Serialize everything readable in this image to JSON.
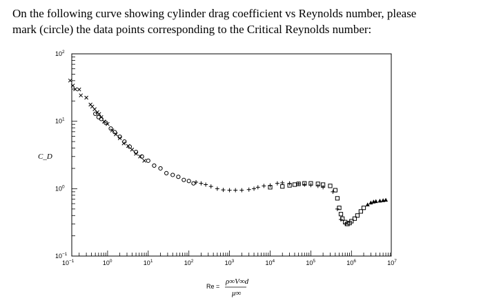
{
  "question": {
    "line1": "On the following curve showing cylinder drag coefficient vs Reynolds number, please",
    "line2": "mark (circle) the data points corresponding to the Critical Reynolds number:"
  },
  "chart_data": {
    "type": "scatter",
    "title": "",
    "xscale": "log",
    "yscale": "log",
    "xlim": [
      0.1,
      10000000
    ],
    "ylim": [
      0.1,
      100
    ],
    "ylabel": "C_D",
    "xlabel_prefix": "Re =",
    "xlabel_numerator": "ρ∞V∞d",
    "xlabel_denominator": "μ∞",
    "x_ticks": [
      {
        "base": "10",
        "exp": "−1",
        "value": 0.1
      },
      {
        "base": "10",
        "exp": "0",
        "value": 1
      },
      {
        "base": "10",
        "exp": "1",
        "value": 10
      },
      {
        "base": "10",
        "exp": "2",
        "value": 100
      },
      {
        "base": "10",
        "exp": "3",
        "value": 1000
      },
      {
        "base": "10",
        "exp": "4",
        "value": 10000
      },
      {
        "base": "10",
        "exp": "5",
        "value": 100000
      },
      {
        "base": "10",
        "exp": "6",
        "value": 1000000
      },
      {
        "base": "10",
        "exp": "7",
        "value": 10000000
      }
    ],
    "y_ticks": [
      {
        "base": "10",
        "exp": "2",
        "value": 100
      },
      {
        "base": "10",
        "exp": "1",
        "value": 10
      },
      {
        "base": "10",
        "exp": "0",
        "value": 1
      },
      {
        "base": "10",
        "exp": "−1",
        "value": 0.1
      }
    ],
    "grid": false,
    "series": [
      {
        "marker": "x",
        "points": [
          [
            0.12,
            40.2
          ],
          [
            0.14,
            33.8
          ],
          [
            0.16,
            29.9
          ],
          [
            0.2,
            29.6
          ],
          [
            0.22,
            24.2
          ],
          [
            0.3,
            22.4
          ],
          [
            0.38,
            17.7
          ],
          [
            0.42,
            16.5
          ],
          [
            0.48,
            15.1
          ],
          [
            0.56,
            13.6
          ],
          [
            0.62,
            12.8
          ],
          [
            0.7,
            11.5
          ],
          [
            0.82,
            9.9
          ],
          [
            1.0,
            9.1
          ],
          [
            1.3,
            7.3
          ],
          [
            1.6,
            6.4
          ],
          [
            2.0,
            5.6
          ],
          [
            2.5,
            4.7
          ],
          [
            3.2,
            4.3
          ],
          [
            4.0,
            3.8
          ],
          [
            5.0,
            3.3
          ],
          [
            6.3,
            3.0
          ],
          [
            8.0,
            2.6
          ]
        ]
      },
      {
        "marker": "circle",
        "points": [
          [
            0.5,
            12.9
          ],
          [
            0.6,
            11.5
          ],
          [
            0.7,
            10.8
          ],
          [
            0.9,
            9.5
          ],
          [
            1.2,
            7.8
          ],
          [
            1.5,
            6.9
          ],
          [
            2.0,
            5.9
          ],
          [
            2.6,
            5.0
          ],
          [
            3.5,
            4.2
          ],
          [
            5.0,
            3.5
          ],
          [
            7.0,
            3.0
          ],
          [
            10.0,
            2.6
          ],
          [
            14.0,
            2.2
          ],
          [
            20.0,
            2.0
          ],
          [
            28.0,
            1.7
          ],
          [
            40.0,
            1.6
          ],
          [
            55.0,
            1.5
          ],
          [
            75.0,
            1.35
          ],
          [
            100.0,
            1.3
          ],
          [
            130.0,
            1.2
          ]
        ]
      },
      {
        "marker": "plus",
        "points": [
          [
            150,
            1.25
          ],
          [
            200,
            1.2
          ],
          [
            260,
            1.15
          ],
          [
            350,
            1.08
          ],
          [
            500,
            1.0
          ],
          [
            700,
            0.96
          ],
          [
            1000,
            0.95
          ],
          [
            1400,
            0.95
          ],
          [
            2000,
            0.95
          ],
          [
            3000,
            0.97
          ],
          [
            4000,
            1.0
          ],
          [
            5000,
            1.05
          ],
          [
            7000,
            1.1
          ],
          [
            10000,
            1.12
          ],
          [
            15000,
            1.2
          ],
          [
            20000,
            1.22
          ],
          [
            30000,
            1.2
          ],
          [
            50000,
            1.18
          ],
          [
            70000,
            1.15
          ],
          [
            100000,
            1.13
          ],
          [
            150000,
            1.1
          ],
          [
            200000,
            1.05
          ],
          [
            350000,
            0.9
          ],
          [
            450000,
            0.5
          ],
          [
            550000,
            0.35
          ],
          [
            700000,
            0.3
          ]
        ]
      },
      {
        "marker": "square",
        "points": [
          [
            10000,
            1.05
          ],
          [
            20000,
            1.08
          ],
          [
            30000,
            1.12
          ],
          [
            40000,
            1.15
          ],
          [
            50000,
            1.18
          ],
          [
            70000,
            1.2
          ],
          [
            100000,
            1.2
          ],
          [
            150000,
            1.18
          ],
          [
            200000,
            1.15
          ],
          [
            300000,
            1.1
          ],
          [
            400000,
            0.95
          ],
          [
            450000,
            0.72
          ],
          [
            500000,
            0.52
          ],
          [
            550000,
            0.42
          ],
          [
            600000,
            0.36
          ],
          [
            700000,
            0.32
          ],
          [
            800000,
            0.3
          ],
          [
            900000,
            0.31
          ],
          [
            1000000,
            0.33
          ],
          [
            1200000,
            0.36
          ],
          [
            1400000,
            0.4
          ],
          [
            1700000,
            0.46
          ],
          [
            2000000,
            0.52
          ]
        ]
      },
      {
        "marker": "triangle",
        "points": [
          [
            2500000,
            0.58
          ],
          [
            3000000,
            0.62
          ],
          [
            3500000,
            0.64
          ],
          [
            4000000,
            0.65
          ],
          [
            5000000,
            0.66
          ],
          [
            6000000,
            0.67
          ],
          [
            7000000,
            0.68
          ]
        ]
      }
    ]
  }
}
